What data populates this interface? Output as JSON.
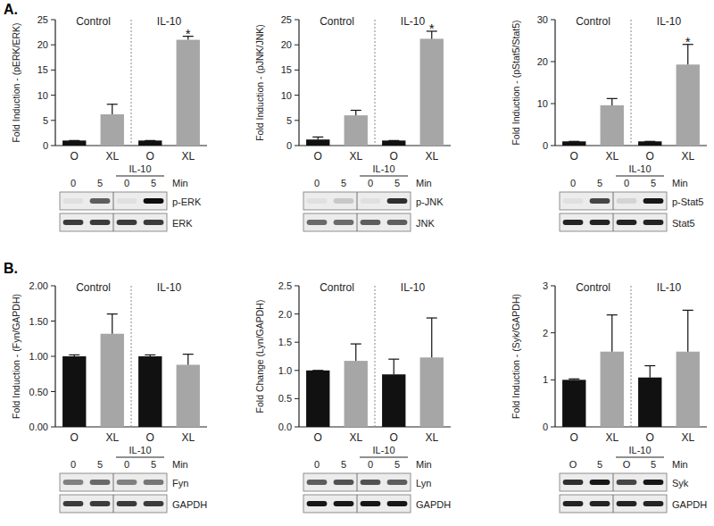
{
  "panel_labels": [
    "A.",
    "B."
  ],
  "chart_data": [
    {
      "type": "bar",
      "y_label": "Fold Induction - (pERK/ERK)",
      "categories": [
        "O",
        "XL",
        "O",
        "XL"
      ],
      "values": [
        1,
        6.2,
        1,
        21
      ],
      "errors": [
        0,
        2,
        0,
        0.7
      ],
      "colors": [
        "#111111",
        "#a6a6a6",
        "#111111",
        "#a6a6a6"
      ],
      "ylim": [
        0,
        25
      ],
      "yticks": [
        0,
        5,
        10,
        15,
        20,
        25
      ],
      "group_labels": [
        "Control",
        "IL-10"
      ],
      "significance": [
        null,
        null,
        null,
        "*"
      ]
    },
    {
      "type": "bar",
      "y_label": "Fold Induction - (pJNK/JNK)",
      "categories": [
        "O",
        "XL",
        "O",
        "XL"
      ],
      "values": [
        1.2,
        6,
        1,
        21.2
      ],
      "errors": [
        0.5,
        1,
        0,
        1.5
      ],
      "colors": [
        "#111111",
        "#a6a6a6",
        "#111111",
        "#a6a6a6"
      ],
      "ylim": [
        0,
        25
      ],
      "yticks": [
        0,
        5,
        10,
        15,
        20,
        25
      ],
      "group_labels": [
        "Control",
        "IL-10"
      ],
      "significance": [
        null,
        null,
        null,
        "*"
      ]
    },
    {
      "type": "bar",
      "y_label": "Fold Induction - (pStat5/Stat5)",
      "categories": [
        "O",
        "XL",
        "O",
        "XL"
      ],
      "values": [
        1,
        9.6,
        1,
        19.3
      ],
      "errors": [
        0,
        1.6,
        0,
        4.8
      ],
      "colors": [
        "#111111",
        "#a6a6a6",
        "#111111",
        "#a6a6a6"
      ],
      "ylim": [
        0,
        30
      ],
      "yticks": [
        0,
        10,
        20,
        30
      ],
      "group_labels": [
        "Control",
        "IL-10"
      ],
      "significance": [
        null,
        null,
        null,
        "*"
      ]
    },
    {
      "type": "bar",
      "y_label": "Fold Induction - (Fyn/GAPDH)",
      "categories": [
        "O",
        "XL",
        "O",
        "XL"
      ],
      "values": [
        1,
        1.32,
        1,
        0.88
      ],
      "errors": [
        0.02,
        0.28,
        0.02,
        0.15
      ],
      "colors": [
        "#111111",
        "#a6a6a6",
        "#111111",
        "#a6a6a6"
      ],
      "ylim": [
        0,
        2
      ],
      "yticks": [
        {
          "value": 0,
          "label": "0.00"
        },
        {
          "value": 0.5,
          "label": "0.50"
        },
        {
          "value": 1,
          "label": "1.00"
        },
        {
          "value": 1.5,
          "label": "1.50"
        },
        {
          "value": 2,
          "label": "2.00"
        }
      ],
      "group_labels": [
        "Control",
        "IL-10"
      ]
    },
    {
      "type": "bar",
      "y_label": "Fold Change (Lyn/GAPDH)",
      "categories": [
        "O",
        "XL",
        "O",
        "XL"
      ],
      "values": [
        1,
        1.17,
        0.93,
        1.23
      ],
      "errors": [
        0,
        0.3,
        0.27,
        0.7
      ],
      "colors": [
        "#111111",
        "#a6a6a6",
        "#111111",
        "#a6a6a6"
      ],
      "ylim": [
        0,
        2.5
      ],
      "yticks": [
        {
          "value": 0,
          "label": "0.0"
        },
        {
          "value": 0.5,
          "label": "0.5"
        },
        {
          "value": 1,
          "label": "1.0"
        },
        {
          "value": 1.5,
          "label": "1.5"
        },
        {
          "value": 2,
          "label": "2.0"
        },
        {
          "value": 2.5,
          "label": "2.5"
        }
      ],
      "group_labels": [
        "Control",
        "IL-10"
      ]
    },
    {
      "type": "bar",
      "y_label": "Fold Induction - (Syk/GAPDH)",
      "categories": [
        "O",
        "XL",
        "O",
        "XL"
      ],
      "values": [
        1,
        1.6,
        1.05,
        1.6
      ],
      "errors": [
        0.02,
        0.78,
        0.25,
        0.88
      ],
      "colors": [
        "#111111",
        "#a6a6a6",
        "#111111",
        "#a6a6a6"
      ],
      "ylim": [
        0,
        3
      ],
      "yticks": [
        0,
        1,
        2,
        3
      ],
      "group_labels": [
        "Control",
        "IL-10"
      ]
    }
  ],
  "blots": [
    {
      "treatment": "IL-10",
      "unit": "Min",
      "lanes": [
        "0",
        "5",
        "0",
        "5"
      ],
      "rows": [
        {
          "label": "p-ERK",
          "bands": [
            0.05,
            0.6,
            0.05,
            0.95
          ]
        },
        {
          "label": "ERK",
          "bands": [
            0.75,
            0.75,
            0.75,
            0.75
          ]
        }
      ]
    },
    {
      "treatment": "IL-10",
      "unit": "Min",
      "lanes": [
        "0",
        "5",
        "0",
        "5"
      ],
      "rows": [
        {
          "label": "p-JNK",
          "bands": [
            0.05,
            0.15,
            0.05,
            0.8
          ]
        },
        {
          "label": "JNK",
          "bands": [
            0.55,
            0.55,
            0.6,
            0.6
          ]
        }
      ]
    },
    {
      "treatment": "IL-10",
      "unit": "Min",
      "lanes": [
        "0",
        "5",
        "0",
        "5"
      ],
      "rows": [
        {
          "label": "p-Stat5",
          "bands": [
            0.05,
            0.7,
            0.1,
            0.9
          ]
        },
        {
          "label": "Stat5",
          "bands": [
            0.85,
            0.85,
            0.85,
            0.85
          ]
        }
      ]
    },
    {
      "treatment": "IL-10",
      "unit": "Min",
      "lanes": [
        "0",
        "5",
        "0",
        "5"
      ],
      "rows": [
        {
          "label": "Fyn",
          "bands": [
            0.45,
            0.55,
            0.45,
            0.5
          ]
        },
        {
          "label": "GAPDH",
          "bands": [
            0.75,
            0.75,
            0.75,
            0.75
          ]
        }
      ]
    },
    {
      "treatment": "IL-10",
      "unit": "Min",
      "lanes": [
        "0",
        "5",
        "0",
        "5"
      ],
      "rows": [
        {
          "label": "Lyn",
          "bands": [
            0.6,
            0.65,
            0.65,
            0.6
          ]
        },
        {
          "label": "GAPDH",
          "bands": [
            0.9,
            0.9,
            0.9,
            0.9
          ]
        }
      ]
    },
    {
      "treatment": "IL-10",
      "unit": "Min",
      "lanes": [
        "O",
        "5",
        "O",
        "5"
      ],
      "rows": [
        {
          "label": "Syk",
          "bands": [
            0.8,
            0.9,
            0.7,
            0.9
          ]
        },
        {
          "label": "GAPDH",
          "bands": [
            0.85,
            0.85,
            0.85,
            0.85
          ]
        }
      ]
    }
  ]
}
